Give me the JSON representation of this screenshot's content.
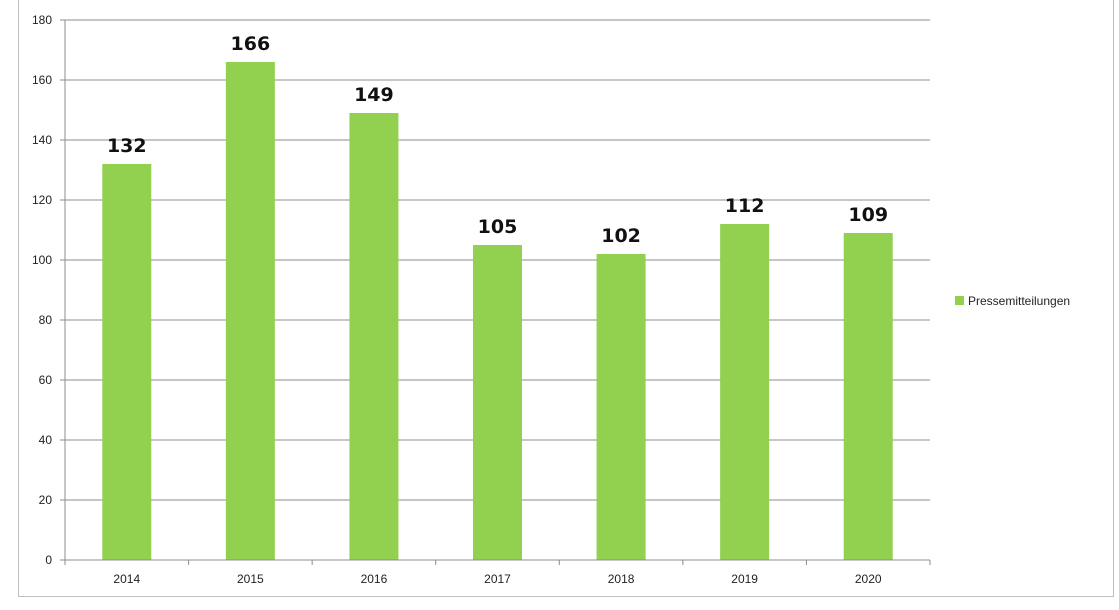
{
  "chart_data": {
    "type": "bar",
    "categories": [
      "2014",
      "2015",
      "2016",
      "2017",
      "2018",
      "2019",
      "2020"
    ],
    "series": [
      {
        "name": "Pressemitteilungen",
        "values": [
          132,
          166,
          149,
          105,
          102,
          112,
          109
        ]
      }
    ],
    "ylim": [
      0,
      180
    ],
    "yticks": [
      0,
      20,
      40,
      60,
      80,
      100,
      120,
      140,
      160,
      180
    ],
    "grid": true,
    "legend": "right",
    "data_labels": true,
    "colors": {
      "bar": "#92d050",
      "grid": "#8c8c8c",
      "axis": "#8c8c8c"
    }
  }
}
